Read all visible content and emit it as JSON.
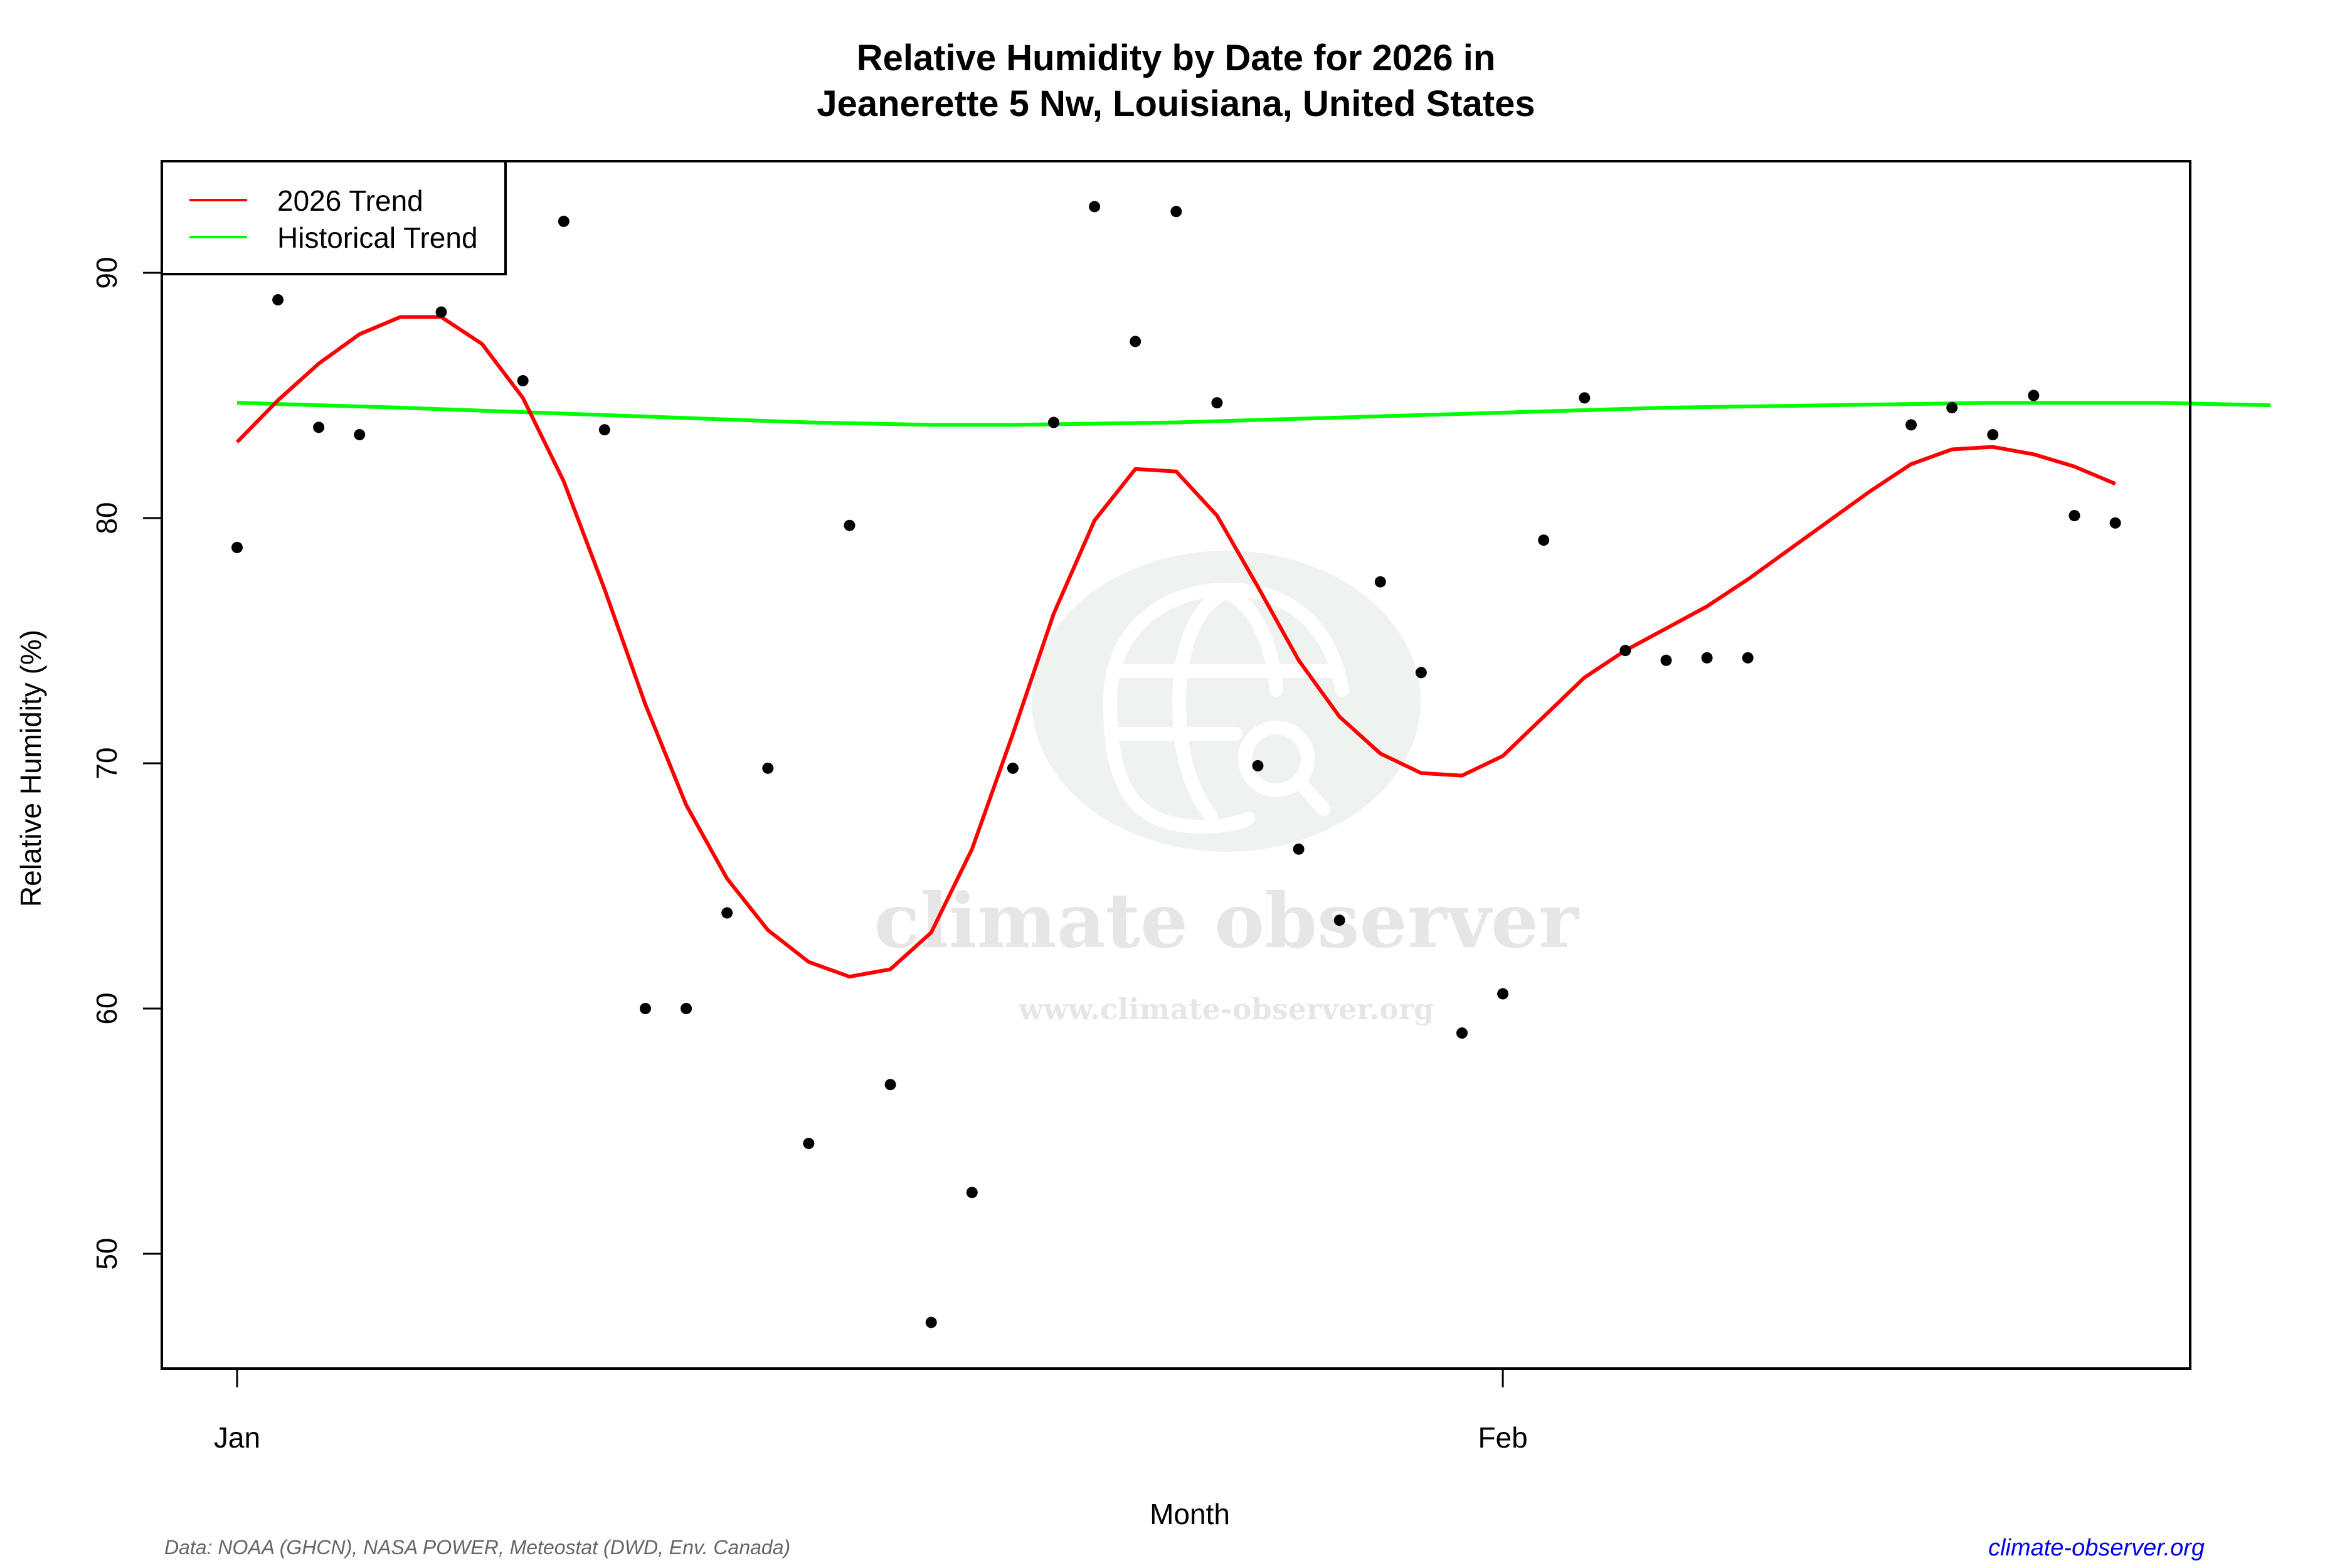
{
  "header": {
    "title_line1": "Relative Humidity by Date for 2026 in",
    "title_line2": "Jeanerette 5 Nw, Louisiana, United States"
  },
  "axes": {
    "xlabel": "Month",
    "ylabel": "Relative Humidity (%)",
    "x_ticks": [
      "Jan",
      "Feb"
    ],
    "y_ticks": [
      "50",
      "60",
      "70",
      "80",
      "90"
    ]
  },
  "legend": {
    "items": [
      {
        "label": "2026 Trend",
        "color": "#ff0000"
      },
      {
        "label": "Historical Trend",
        "color": "#00ff00"
      }
    ]
  },
  "watermark": {
    "brand": "climate observer",
    "url": "www.climate-observer.org"
  },
  "footer": {
    "source": "Data: NOAA (GHCN), NASA POWER, Meteostat (DWD, Env. Canada)",
    "site": "climate-observer.org"
  },
  "colors": {
    "trend_2026": "#ff0000",
    "historical": "#00ff00",
    "points": "#000000",
    "footer_link": "#0000ee"
  },
  "chart_data": {
    "type": "scatter",
    "title": "Relative Humidity by Date for 2026 in Jeanerette 5 Nw, Louisiana, United States",
    "xlabel": "Month",
    "ylabel": "Relative Humidity (%)",
    "x_tick_labels": [
      {
        "label": "Jan",
        "day": 1
      },
      {
        "label": "Feb",
        "day": 32
      }
    ],
    "xlim_days": [
      -0.9,
      50.8
    ],
    "ylim": [
      45.3,
      94.8
    ],
    "y_ticks": [
      50,
      60,
      70,
      80,
      90
    ],
    "grid": false,
    "legend_position": "top-left",
    "series": [
      {
        "name": "Daily observations",
        "type": "scatter",
        "color": "#000000",
        "points": [
          [
            1,
            78.8
          ],
          [
            2,
            88.9
          ],
          [
            3,
            83.7
          ],
          [
            4,
            83.4
          ],
          [
            6,
            88.4
          ],
          [
            8,
            85.6
          ],
          [
            9,
            92.1
          ],
          [
            10,
            83.6
          ],
          [
            11,
            60.0
          ],
          [
            12,
            60.0
          ],
          [
            13,
            63.9
          ],
          [
            14,
            69.8
          ],
          [
            15,
            54.5
          ],
          [
            16,
            79.7
          ],
          [
            17,
            56.9
          ],
          [
            18,
            47.2
          ],
          [
            19,
            52.5
          ],
          [
            20,
            69.8
          ],
          [
            21,
            83.9
          ],
          [
            22,
            92.7
          ],
          [
            23,
            87.2
          ],
          [
            24,
            92.5
          ],
          [
            25,
            84.7
          ],
          [
            26,
            69.9
          ],
          [
            27,
            66.5
          ],
          [
            28,
            63.6
          ],
          [
            29,
            77.4
          ],
          [
            30,
            73.7
          ],
          [
            31,
            59.0
          ],
          [
            32,
            60.6
          ],
          [
            33,
            79.1
          ],
          [
            34,
            84.9
          ],
          [
            35,
            74.6
          ],
          [
            36,
            74.2
          ],
          [
            37,
            74.3
          ],
          [
            38,
            74.3
          ],
          [
            42,
            83.8
          ],
          [
            43,
            84.5
          ],
          [
            44,
            83.4
          ],
          [
            45,
            85.0
          ],
          [
            46,
            80.1
          ],
          [
            47,
            79.8
          ]
        ]
      },
      {
        "name": "2026 Trend",
        "type": "line",
        "color": "#ff0000",
        "points": [
          [
            1,
            83.1
          ],
          [
            2,
            84.8
          ],
          [
            3,
            86.3
          ],
          [
            4,
            87.5
          ],
          [
            5,
            88.2
          ],
          [
            6,
            88.2
          ],
          [
            7,
            87.1
          ],
          [
            8,
            84.9
          ],
          [
            9,
            81.5
          ],
          [
            10,
            77.1
          ],
          [
            11,
            72.4
          ],
          [
            12,
            68.3
          ],
          [
            13,
            65.3
          ],
          [
            14,
            63.2
          ],
          [
            15,
            61.9
          ],
          [
            16,
            61.3
          ],
          [
            17,
            61.6
          ],
          [
            18,
            63.1
          ],
          [
            19,
            66.5
          ],
          [
            20,
            71.2
          ],
          [
            21,
            76.1
          ],
          [
            22,
            79.9
          ],
          [
            23,
            82.0
          ],
          [
            24,
            81.9
          ],
          [
            25,
            80.1
          ],
          [
            26,
            77.2
          ],
          [
            27,
            74.2
          ],
          [
            28,
            71.9
          ],
          [
            29,
            70.4
          ],
          [
            30,
            69.6
          ],
          [
            31,
            69.5
          ],
          [
            32,
            70.3
          ],
          [
            33,
            71.9
          ],
          [
            34,
            73.5
          ],
          [
            35,
            74.6
          ],
          [
            36,
            75.5
          ],
          [
            37,
            76.4
          ],
          [
            38,
            77.5
          ],
          [
            39,
            78.7
          ],
          [
            40,
            79.9
          ],
          [
            41,
            81.1
          ],
          [
            42,
            82.2
          ],
          [
            43,
            82.8
          ],
          [
            44,
            82.9
          ],
          [
            45,
            82.6
          ],
          [
            46,
            82.1
          ],
          [
            47,
            81.4
          ]
        ]
      },
      {
        "name": "Historical Trend",
        "type": "line",
        "color": "#00ff00",
        "points": [
          [
            1,
            84.7
          ],
          [
            5,
            84.5
          ],
          [
            10,
            84.2
          ],
          [
            15,
            83.9
          ],
          [
            18,
            83.8
          ],
          [
            20,
            83.8
          ],
          [
            24,
            83.9
          ],
          [
            28,
            84.1
          ],
          [
            32,
            84.3
          ],
          [
            36,
            84.5
          ],
          [
            40,
            84.6
          ],
          [
            44,
            84.7
          ],
          [
            48,
            84.7
          ],
          [
            50.8,
            84.6
          ]
        ]
      }
    ]
  }
}
